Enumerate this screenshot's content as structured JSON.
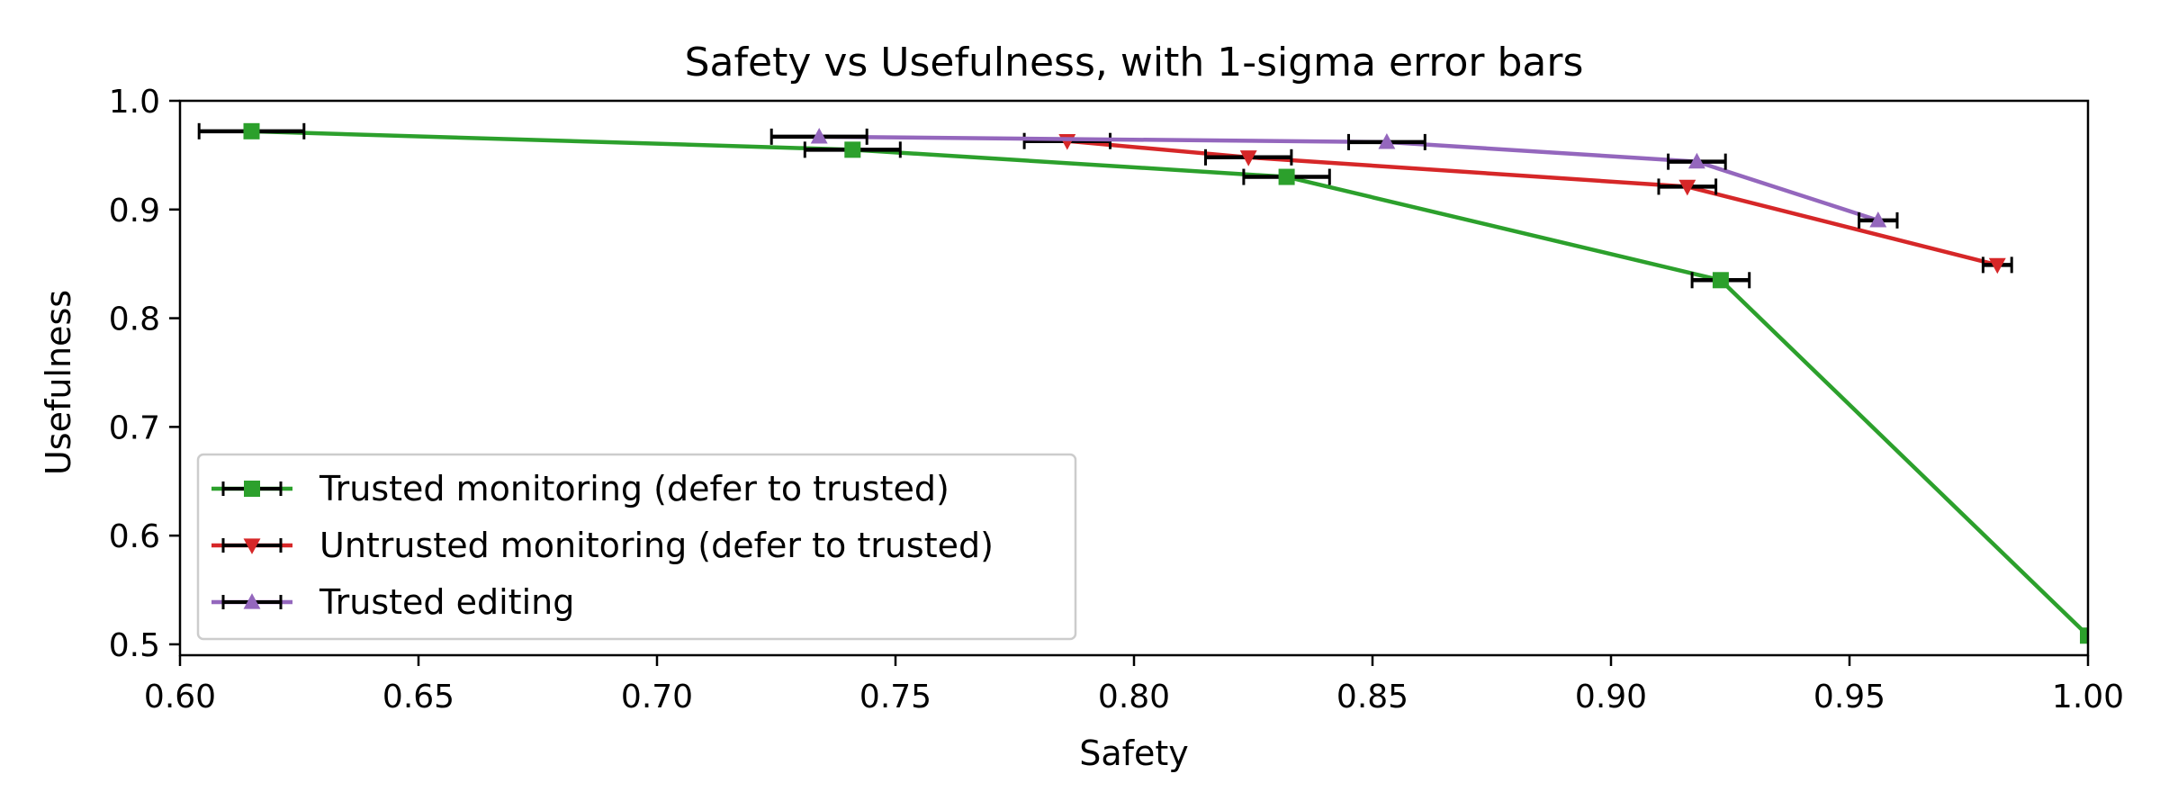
{
  "chart_data": {
    "type": "line",
    "title": "Safety vs Usefulness, with 1-sigma error bars",
    "xlabel": "Safety",
    "ylabel": "Usefulness",
    "xlim": [
      0.6,
      1.0
    ],
    "ylim": [
      0.49,
      1.0
    ],
    "xticks": [
      "0.60",
      "0.65",
      "0.70",
      "0.75",
      "0.80",
      "0.85",
      "0.90",
      "0.95",
      "1.00"
    ],
    "yticks": [
      "0.5",
      "0.6",
      "0.7",
      "0.8",
      "0.9",
      "1.0"
    ],
    "legend_position": "lower-left",
    "series": [
      {
        "name": "Trusted monitoring (defer to trusted)",
        "color": "#2ca02c",
        "marker": "square",
        "x": [
          0.615,
          0.741,
          0.832,
          0.923,
          1.0
        ],
        "y": [
          0.972,
          0.955,
          0.93,
          0.835,
          0.508
        ],
        "xerr": [
          0.011,
          0.01,
          0.009,
          0.006,
          0.0
        ]
      },
      {
        "name": "Untrusted monitoring (defer to trusted)",
        "color": "#d62728",
        "marker": "triangle-down",
        "x": [
          0.786,
          0.824,
          0.916,
          0.981
        ],
        "y": [
          0.963,
          0.948,
          0.921,
          0.849
        ],
        "xerr": [
          0.009,
          0.009,
          0.006,
          0.003
        ]
      },
      {
        "name": "Trusted editing",
        "color": "#9467bd",
        "marker": "triangle-up",
        "x": [
          0.734,
          0.853,
          0.918,
          0.956
        ],
        "y": [
          0.967,
          0.962,
          0.944,
          0.89
        ],
        "xerr": [
          0.01,
          0.008,
          0.006,
          0.004
        ]
      }
    ]
  }
}
